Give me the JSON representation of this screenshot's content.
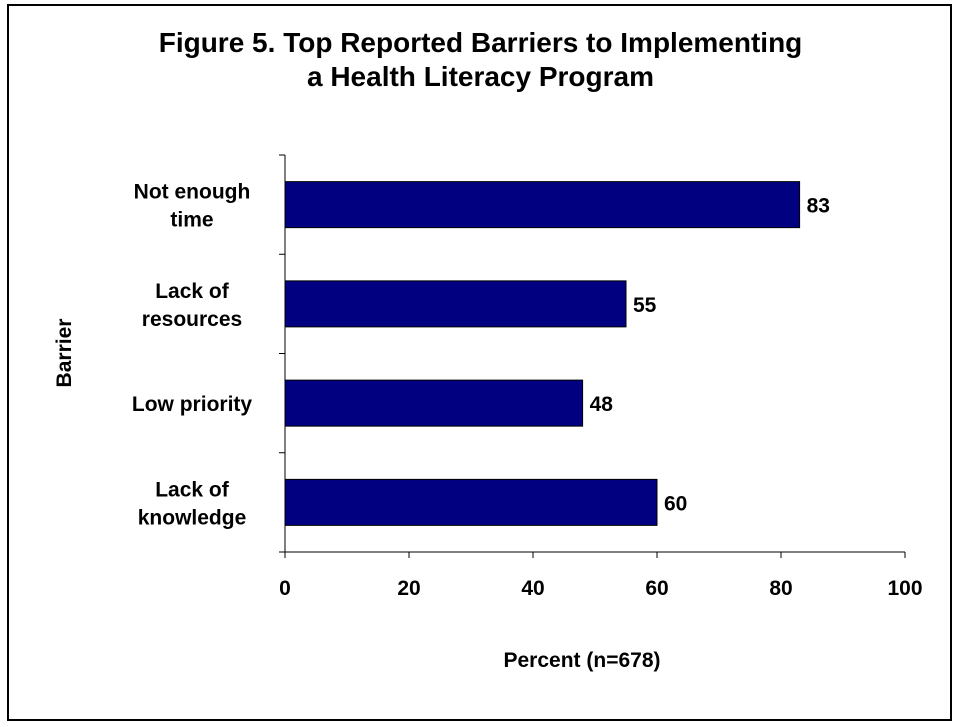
{
  "chart_data": {
    "type": "bar",
    "orientation": "horizontal",
    "title_lines": [
      "Figure 5. Top Reported Barriers to Implementing",
      "a Health Literacy Program"
    ],
    "categories": [
      [
        "Not enough",
        "time"
      ],
      [
        "Lack of",
        "resources"
      ],
      [
        "Low priority"
      ],
      [
        "Lack of",
        "knowledge"
      ]
    ],
    "values": [
      83,
      55,
      48,
      60
    ],
    "data_labels": [
      "83",
      "55",
      "48",
      "60"
    ],
    "xlabel": "Percent (n=678)",
    "ylabel": "Barrier",
    "xlim": [
      0,
      100
    ],
    "xticks": [
      0,
      20,
      40,
      60,
      80,
      100
    ],
    "xtick_labels": [
      "0",
      "20",
      "40",
      "60",
      "80",
      "100"
    ],
    "bar_color": "#000080",
    "grid": false,
    "legend": "none"
  }
}
